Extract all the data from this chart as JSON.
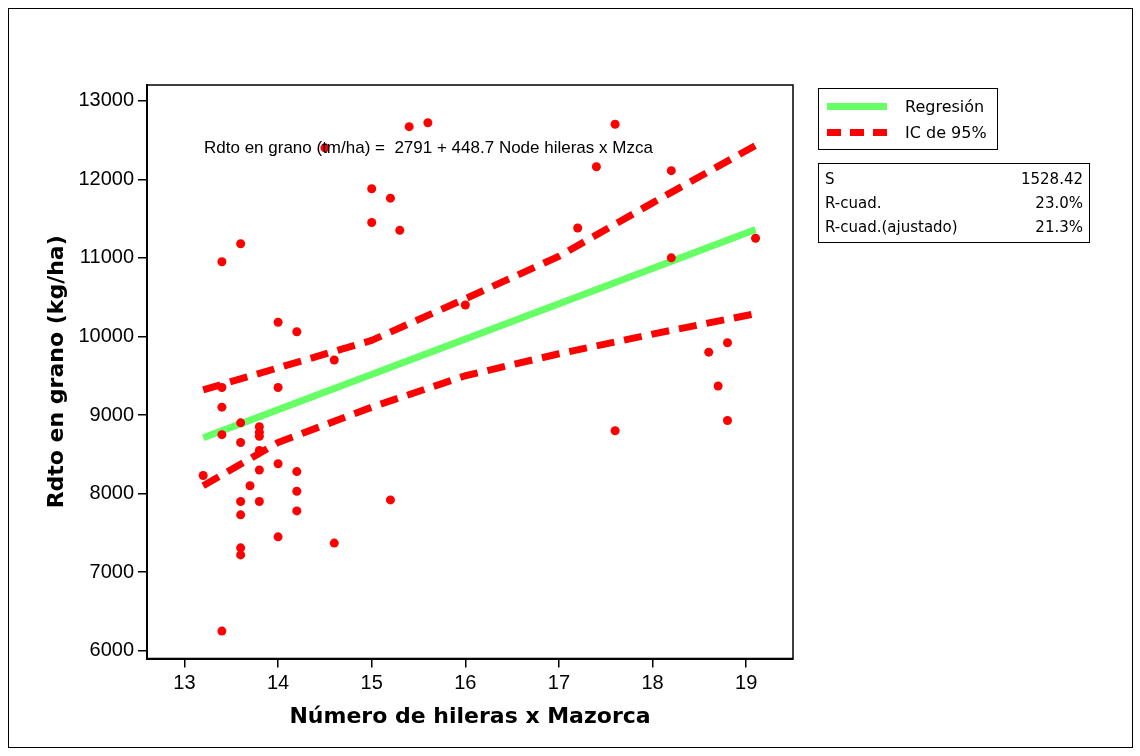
{
  "chart_data": {
    "type": "scatter",
    "xlabel": "Número de hileras x Mazorca",
    "ylabel": "Rdto en grano (kg/ha)",
    "xlim": [
      12.6,
      19.5
    ],
    "xticks": [
      13,
      14,
      15,
      16,
      17,
      18,
      19
    ],
    "ylim": [
      5900,
      13200
    ],
    "yticks": [
      6000,
      7000,
      8000,
      9000,
      10000,
      11000,
      12000,
      13000
    ],
    "grid": false,
    "legend": "right",
    "marker": "circle",
    "series": [
      {
        "type": "scatter",
        "color": "#ff0000",
        "x": [
          13.2,
          13.4,
          13.4,
          13.4,
          13.4,
          13.4,
          13.6,
          13.6,
          13.6,
          13.6,
          13.6,
          13.6,
          13.6,
          13.7,
          13.8,
          13.8,
          13.8,
          13.8,
          13.8,
          13.8,
          14,
          14,
          14,
          14,
          14.2,
          14.2,
          14.2,
          14.2,
          14.5,
          14.6,
          14.6,
          15,
          15,
          15.2,
          15.2,
          15.3,
          15.4,
          15.6,
          16,
          17.2,
          17.4,
          17.6,
          17.6,
          18.2,
          18.2,
          18.6,
          18.7,
          18.8,
          18.8,
          19.1
        ],
        "values": [
          8230,
          10950,
          9350,
          9100,
          8750,
          6250,
          11180,
          8900,
          8650,
          7900,
          7730,
          7310,
          7220,
          8100,
          8850,
          8780,
          8730,
          8550,
          8300,
          7900,
          10180,
          9350,
          8380,
          7450,
          10060,
          8280,
          8030,
          7780,
          12400,
          9700,
          7370,
          11880,
          11450,
          11760,
          7920,
          11350,
          12670,
          12720,
          10400,
          11380,
          12160,
          12700,
          8800,
          12110,
          11000,
          9800,
          9370,
          9920,
          8930,
          11250
        ]
      },
      {
        "type": "line",
        "name": "Regresión",
        "color": "#66ff66",
        "line_style": "solid",
        "marker": "none",
        "x": [
          13.2,
          19.1
        ],
        "values": [
          8710,
          11360
        ]
      },
      {
        "type": "line",
        "name": "IC de 95%",
        "color": "#ff0000",
        "line_style": "dashed",
        "marker": "none",
        "x": [
          13.2,
          14,
          15,
          16,
          17,
          18,
          19.1
        ],
        "values": [
          9320,
          9600,
          9950,
          10480,
          11020,
          11700,
          12430
        ]
      },
      {
        "type": "line",
        "color": "#ff0000",
        "line_style": "dashed",
        "marker": "none",
        "x": [
          13.2,
          14,
          15,
          16,
          17,
          18,
          19.1
        ],
        "values": [
          8100,
          8650,
          9100,
          9500,
          9780,
          10030,
          10290
        ]
      }
    ],
    "annotations": [
      "Rdto en grano (tm/ha) =  2791 + 448.7 Node hileras x Mzca",
      "S",
      "1528.42",
      "R-cuad.",
      "23.0%",
      "R-cuad.(ajustado)",
      "21.3%"
    ]
  }
}
